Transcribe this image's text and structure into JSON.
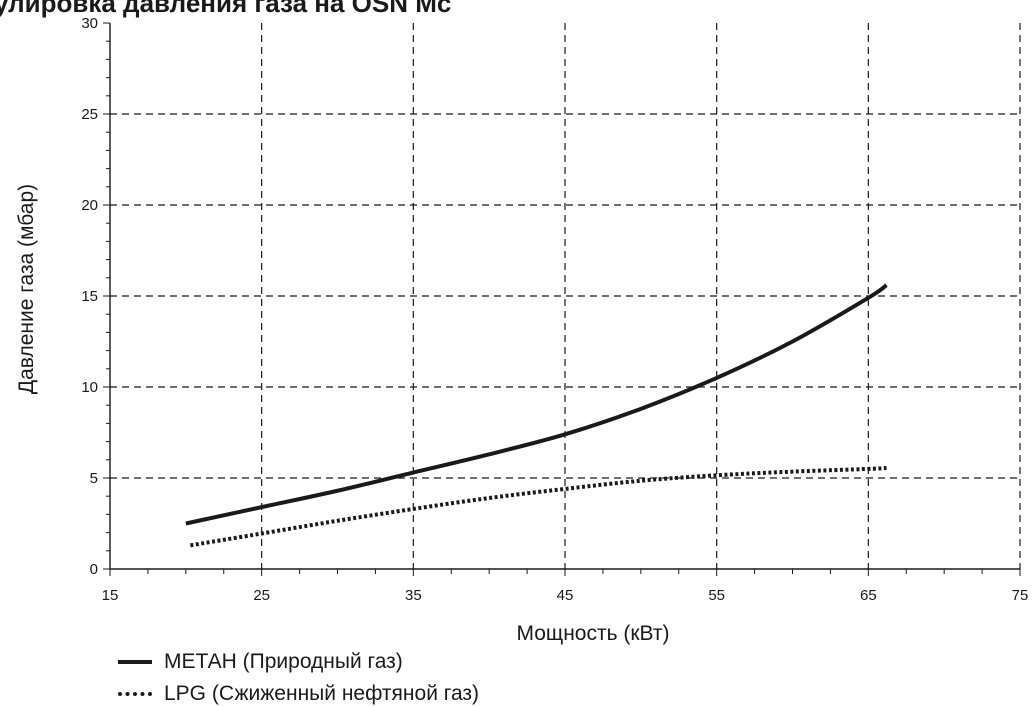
{
  "chart_data": {
    "type": "line",
    "title": "улировка давления газа на OSN Mc",
    "xlabel": "Мощность (кВт)",
    "ylabel": "Давление газа (мбар)",
    "xlim": [
      15,
      75
    ],
    "ylim": [
      0,
      30
    ],
    "xticks": [
      15,
      25,
      35,
      45,
      55,
      65,
      75
    ],
    "yticks": [
      0,
      5,
      10,
      15,
      20,
      25,
      30
    ],
    "grid": true,
    "legend_position": "bottom-left",
    "series": [
      {
        "name": "МЕТАН (Природный газ)",
        "style": "solid",
        "color": "#1a1a1a",
        "x": [
          20,
          25,
          30,
          35,
          40,
          45,
          50,
          55,
          60,
          65,
          66.2
        ],
        "y": [
          2.5,
          3.4,
          4.3,
          5.3,
          6.3,
          7.4,
          8.8,
          10.5,
          12.5,
          14.9,
          15.6
        ]
      },
      {
        "name": "LPG (Сжиженный нефтяной газ)",
        "style": "dotted",
        "color": "#1a1a1a",
        "x": [
          20.3,
          25,
          30,
          35,
          40,
          45,
          50,
          55,
          60,
          65,
          66.2
        ],
        "y": [
          1.3,
          1.95,
          2.65,
          3.3,
          3.9,
          4.4,
          4.85,
          5.15,
          5.35,
          5.5,
          5.55
        ]
      }
    ]
  }
}
